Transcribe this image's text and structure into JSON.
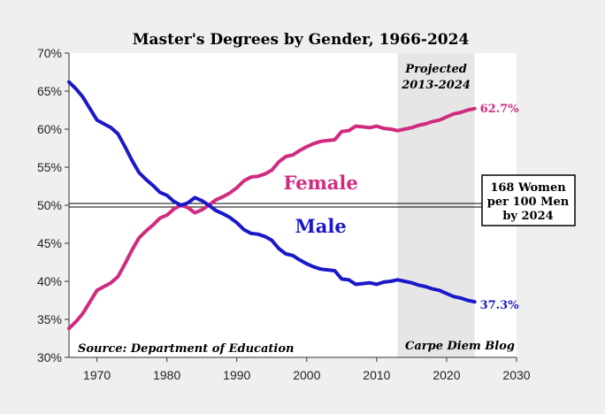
{
  "chart_data": {
    "type": "line",
    "title": "Master's Degrees by Gender, 1966-2024",
    "xlim": [
      1966,
      2030
    ],
    "ylim": [
      30,
      70
    ],
    "x_ticks": [
      1970,
      1980,
      1990,
      2000,
      2010,
      2020,
      2030
    ],
    "y_ticks": [
      30,
      35,
      40,
      45,
      50,
      55,
      60,
      65,
      70
    ],
    "y_tick_labels": [
      "30%",
      "35%",
      "40%",
      "45%",
      "50%",
      "55%",
      "60%",
      "65%",
      "70%"
    ],
    "projection": {
      "label_line1": "Projected",
      "label_line2": "2013-2024",
      "start": 2013,
      "end": 2024
    },
    "reference_line": 50,
    "source": "Source: Department of Education",
    "credit": "Carpe Diem Blog",
    "callout": [
      "168 Women",
      "per 100 Men",
      "by 2024"
    ],
    "series": [
      {
        "name": "Female",
        "color": "#d02b7e",
        "end_label": "62.7%",
        "x": [
          1966,
          1967,
          1968,
          1969,
          1970,
          1971,
          1972,
          1973,
          1974,
          1975,
          1976,
          1977,
          1978,
          1979,
          1980,
          1981,
          1982,
          1983,
          1984,
          1985,
          1986,
          1987,
          1988,
          1989,
          1990,
          1991,
          1992,
          1993,
          1994,
          1995,
          1996,
          1997,
          1998,
          1999,
          2000,
          2001,
          2002,
          2003,
          2004,
          2005,
          2006,
          2007,
          2008,
          2009,
          2010,
          2011,
          2012,
          2013,
          2014,
          2015,
          2016,
          2017,
          2018,
          2019,
          2020,
          2021,
          2022,
          2023,
          2024
        ],
        "values": [
          33.8,
          34.7,
          35.8,
          37.3,
          38.8,
          39.3,
          39.8,
          40.6,
          42.3,
          44.1,
          45.7,
          46.6,
          47.4,
          48.3,
          48.7,
          49.5,
          50.0,
          49.7,
          49.0,
          49.4,
          50.0,
          50.7,
          51.1,
          51.6,
          52.3,
          53.2,
          53.7,
          53.8,
          54.1,
          54.6,
          55.7,
          56.4,
          56.6,
          57.2,
          57.7,
          58.1,
          58.4,
          58.5,
          58.6,
          59.7,
          59.8,
          60.4,
          60.3,
          60.2,
          60.4,
          60.1,
          60.0,
          59.8,
          60.0,
          60.2,
          60.5,
          60.7,
          61.0,
          61.2,
          61.6,
          62.0,
          62.2,
          62.5,
          62.7
        ]
      },
      {
        "name": "Male",
        "color": "#1a18c9",
        "end_label": "37.3%",
        "x": [
          1966,
          1967,
          1968,
          1969,
          1970,
          1971,
          1972,
          1973,
          1974,
          1975,
          1976,
          1977,
          1978,
          1979,
          1980,
          1981,
          1982,
          1983,
          1984,
          1985,
          1986,
          1987,
          1988,
          1989,
          1990,
          1991,
          1992,
          1993,
          1994,
          1995,
          1996,
          1997,
          1998,
          1999,
          2000,
          2001,
          2002,
          2003,
          2004,
          2005,
          2006,
          2007,
          2008,
          2009,
          2010,
          2011,
          2012,
          2013,
          2014,
          2015,
          2016,
          2017,
          2018,
          2019,
          2020,
          2021,
          2022,
          2023,
          2024
        ],
        "values": [
          66.2,
          65.3,
          64.2,
          62.7,
          61.2,
          60.7,
          60.2,
          59.4,
          57.7,
          55.9,
          54.3,
          53.4,
          52.6,
          51.7,
          51.3,
          50.5,
          50.0,
          50.3,
          51.0,
          50.6,
          50.0,
          49.3,
          48.9,
          48.4,
          47.7,
          46.8,
          46.3,
          46.2,
          45.9,
          45.4,
          44.3,
          43.6,
          43.4,
          42.8,
          42.3,
          41.9,
          41.6,
          41.5,
          41.4,
          40.3,
          40.2,
          39.6,
          39.7,
          39.8,
          39.6,
          39.9,
          40.0,
          40.2,
          40.0,
          39.8,
          39.5,
          39.3,
          39.0,
          38.8,
          38.4,
          38.0,
          37.8,
          37.5,
          37.3
        ]
      }
    ]
  }
}
